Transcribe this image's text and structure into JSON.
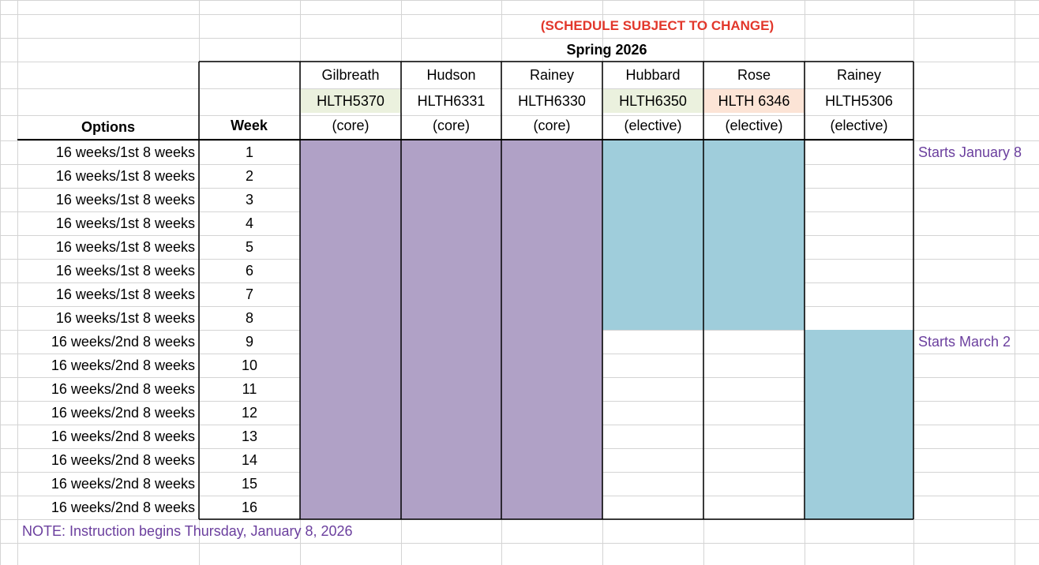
{
  "banner": "(SCHEDULE SUBJECT TO CHANGE)",
  "term": "Spring 2026",
  "headers": {
    "options": "Options",
    "week": "Week"
  },
  "courses": [
    {
      "instructor": "Gilbreath",
      "code": "HLTH5370",
      "type": "(core)",
      "code_bg": "#ebf1de"
    },
    {
      "instructor": "Hudson",
      "code": "HLTH6331",
      "type": "(core)",
      "code_bg": "#ffffff"
    },
    {
      "instructor": "Rainey",
      "code": "HLTH6330",
      "type": "(core)",
      "code_bg": "#ffffff"
    },
    {
      "instructor": "Hubbard",
      "code": "HLTH6350",
      "type": "(elective)",
      "code_bg": "#ebf1de"
    },
    {
      "instructor": "Rose",
      "code": "HLTH 6346",
      "type": "(elective)",
      "code_bg": "#fce4d6"
    },
    {
      "instructor": "Rainey",
      "code": "HLTH5306",
      "type": "(elective)",
      "code_bg": "#ffffff"
    }
  ],
  "rows": [
    {
      "option": "16 weeks/1st 8 weeks",
      "week": "1",
      "note": "Starts January 8"
    },
    {
      "option": "16 weeks/1st 8 weeks",
      "week": "2",
      "note": ""
    },
    {
      "option": "16 weeks/1st 8 weeks",
      "week": "3",
      "note": ""
    },
    {
      "option": "16 weeks/1st 8 weeks",
      "week": "4",
      "note": ""
    },
    {
      "option": "16 weeks/1st 8 weeks",
      "week": "5",
      "note": ""
    },
    {
      "option": "16 weeks/1st 8 weeks",
      "week": "6",
      "note": ""
    },
    {
      "option": "16 weeks/1st 8 weeks",
      "week": "7",
      "note": ""
    },
    {
      "option": "16 weeks/1st 8 weeks",
      "week": "8",
      "note": ""
    },
    {
      "option": "16 weeks/2nd 8 weeks",
      "week": "9",
      "note": "Starts March 2"
    },
    {
      "option": "16 weeks/2nd 8 weeks",
      "week": "10",
      "note": ""
    },
    {
      "option": "16 weeks/2nd 8 weeks",
      "week": "11",
      "note": ""
    },
    {
      "option": "16 weeks/2nd 8 weeks",
      "week": "12",
      "note": ""
    },
    {
      "option": "16 weeks/2nd 8 weeks",
      "week": "13",
      "note": ""
    },
    {
      "option": "16 weeks/2nd 8 weeks",
      "week": "14",
      "note": ""
    },
    {
      "option": "16 weeks/2nd 8 weeks",
      "week": "15",
      "note": ""
    },
    {
      "option": "16 weeks/2nd 8 weeks",
      "week": "16",
      "note": ""
    }
  ],
  "schedule": [
    {
      "course": 0,
      "from_week": 1,
      "to_week": 16,
      "color": "#b0a1c6"
    },
    {
      "course": 1,
      "from_week": 1,
      "to_week": 16,
      "color": "#b0a1c6"
    },
    {
      "course": 2,
      "from_week": 1,
      "to_week": 16,
      "color": "#b0a1c6"
    },
    {
      "course": 3,
      "from_week": 1,
      "to_week": 8,
      "color": "#9fcddb"
    },
    {
      "course": 4,
      "from_week": 1,
      "to_week": 8,
      "color": "#9fcddb"
    },
    {
      "course": 5,
      "from_week": 9,
      "to_week": 16,
      "color": "#9fcddb"
    }
  ],
  "footer_note": "NOTE: Instruction begins Thursday, January 8, 2026",
  "colors": {
    "gridline": "#d4d4d4",
    "note_purple": "#6b3f9e",
    "banner_red": "#e2372b"
  }
}
